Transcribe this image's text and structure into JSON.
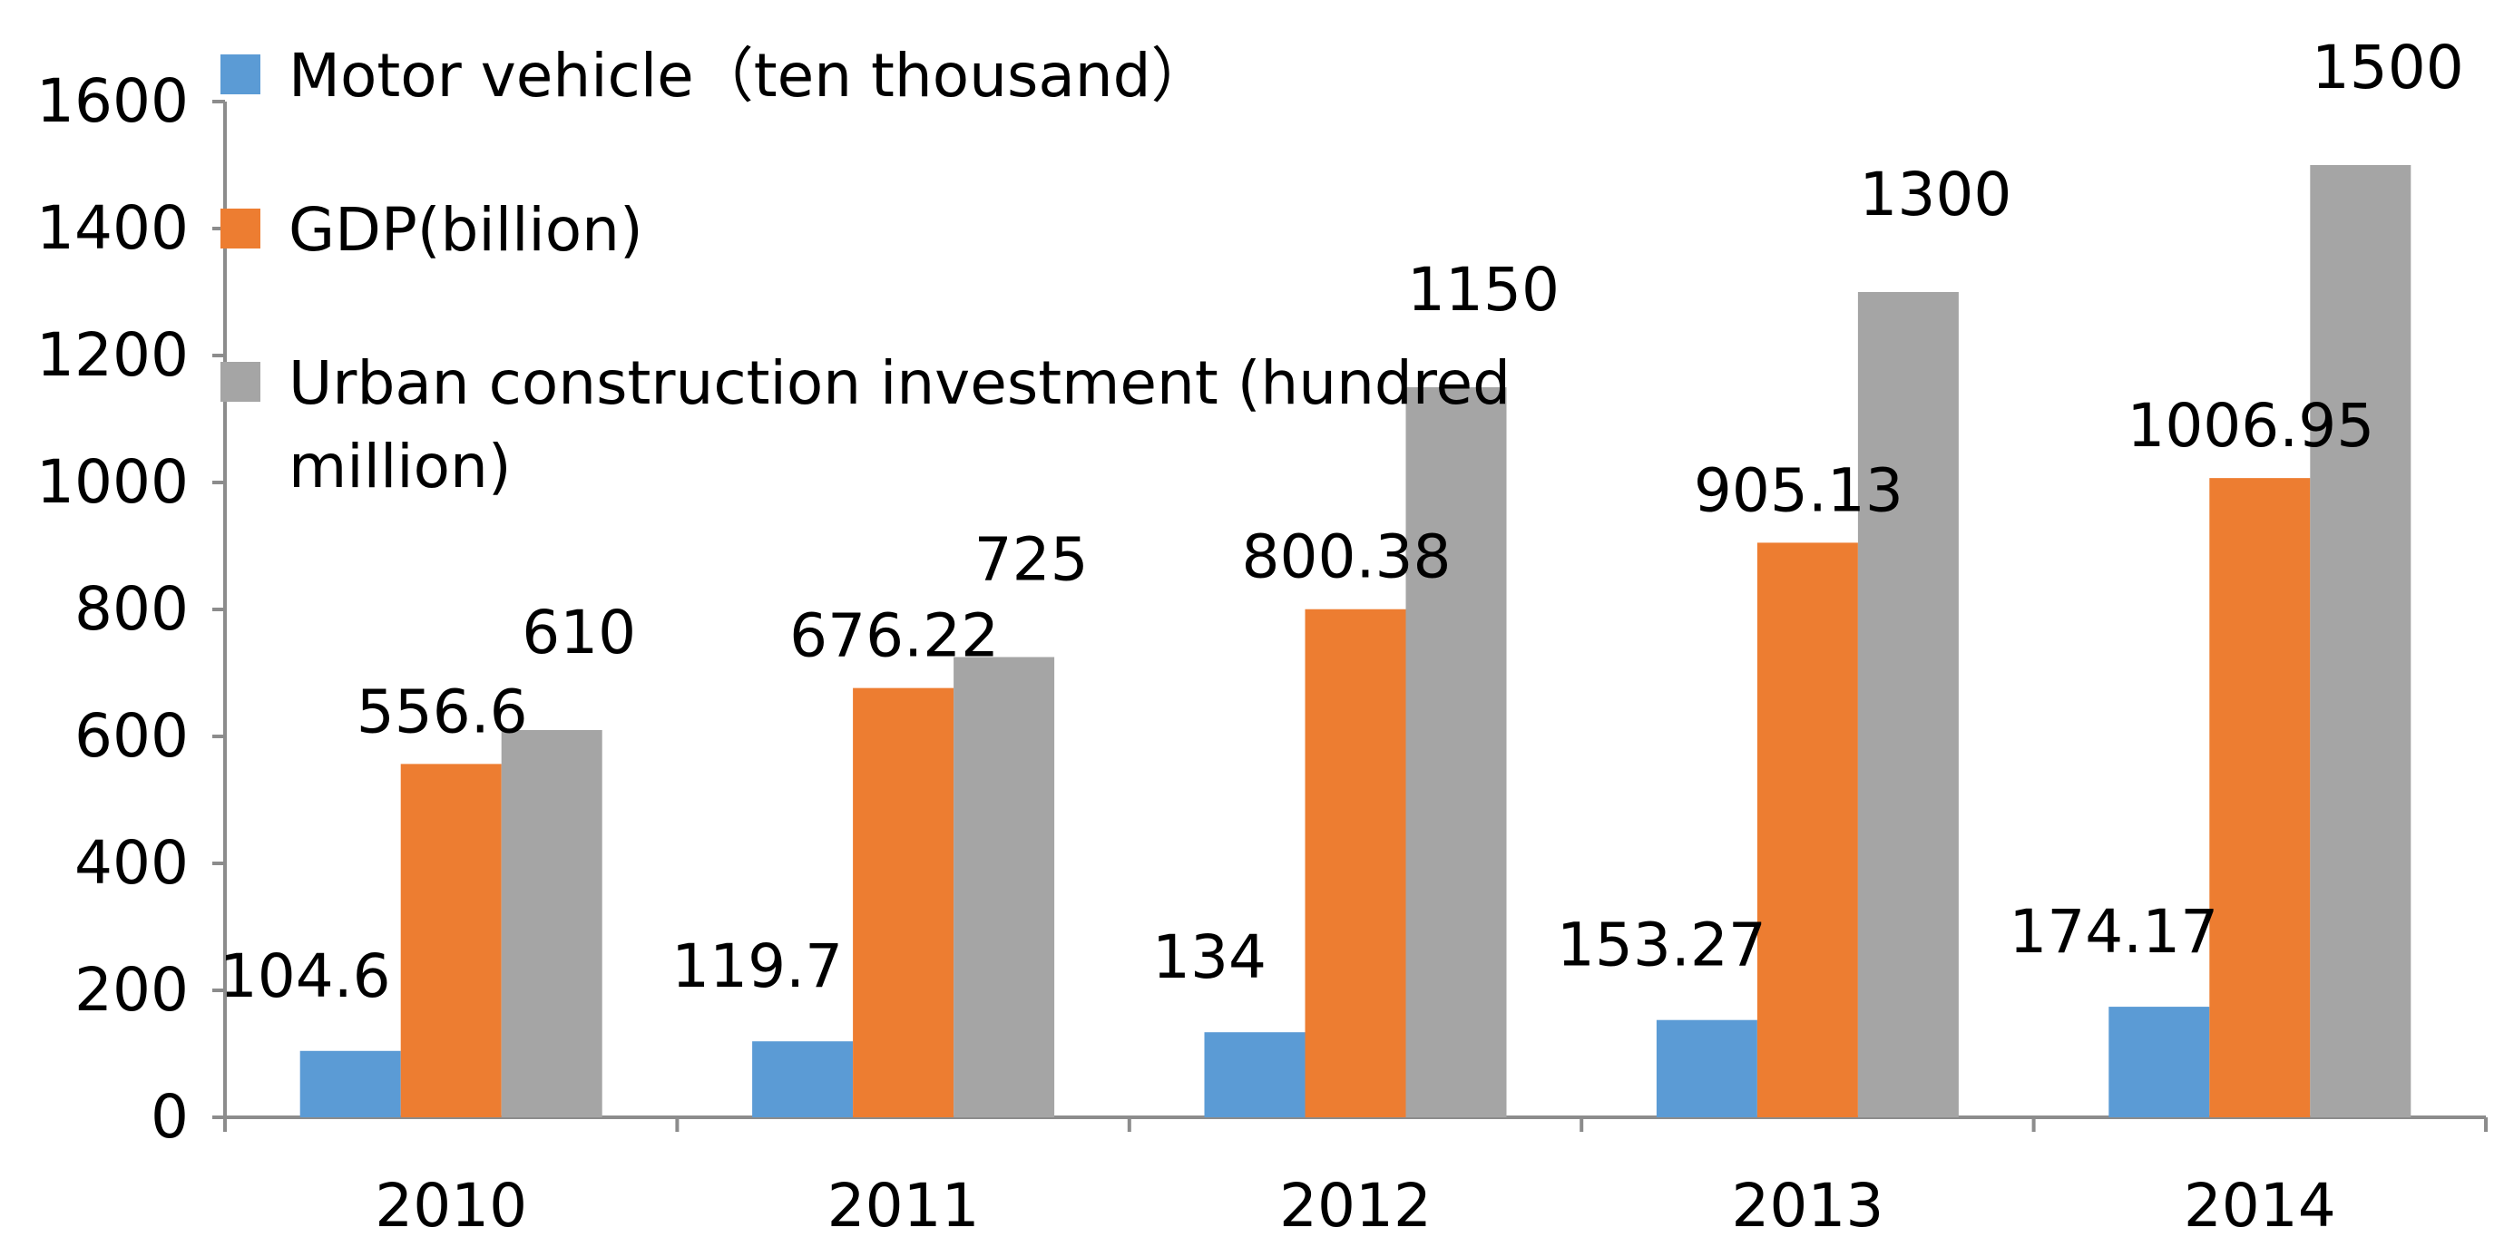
{
  "chart_data": {
    "type": "bar",
    "categories": [
      "2010",
      "2011",
      "2012",
      "2013",
      "2014"
    ],
    "series": [
      {
        "name": "Motor vehicle（ten thousand）",
        "color": "#5B9BD5",
        "values": [
          104.6,
          119.7,
          134,
          153.27,
          174.17
        ],
        "labels": [
          "104.6",
          "119.7",
          "134",
          "153.27",
          "174.17"
        ]
      },
      {
        "name": "GDP(billion)",
        "color": "#ED7D31",
        "values": [
          556.6,
          676.22,
          800.38,
          905.13,
          1006.95
        ],
        "labels": [
          "556.6",
          "676.22",
          "800.38",
          "905.13",
          "1006.95"
        ]
      },
      {
        "name": "Urban construction investment (hundred million)",
        "legend_lines": [
          "Urban construction investment (hundred",
          "million)"
        ],
        "color": "#A5A5A5",
        "values": [
          610,
          725,
          1150,
          1300,
          1500
        ],
        "labels": [
          "610",
          "725",
          "1150",
          "1300",
          "1500"
        ]
      }
    ],
    "title": "",
    "xlabel": "",
    "ylabel": "",
    "ylim": [
      0,
      1600
    ],
    "yticks": [
      0,
      200,
      400,
      600,
      800,
      1000,
      1200,
      1400,
      1600
    ],
    "ytick_labels": [
      "0",
      "200",
      "400",
      "600",
      "800",
      "1000",
      "1200",
      "1400",
      "1600"
    ],
    "grid": false,
    "legend_position": "top-left"
  }
}
